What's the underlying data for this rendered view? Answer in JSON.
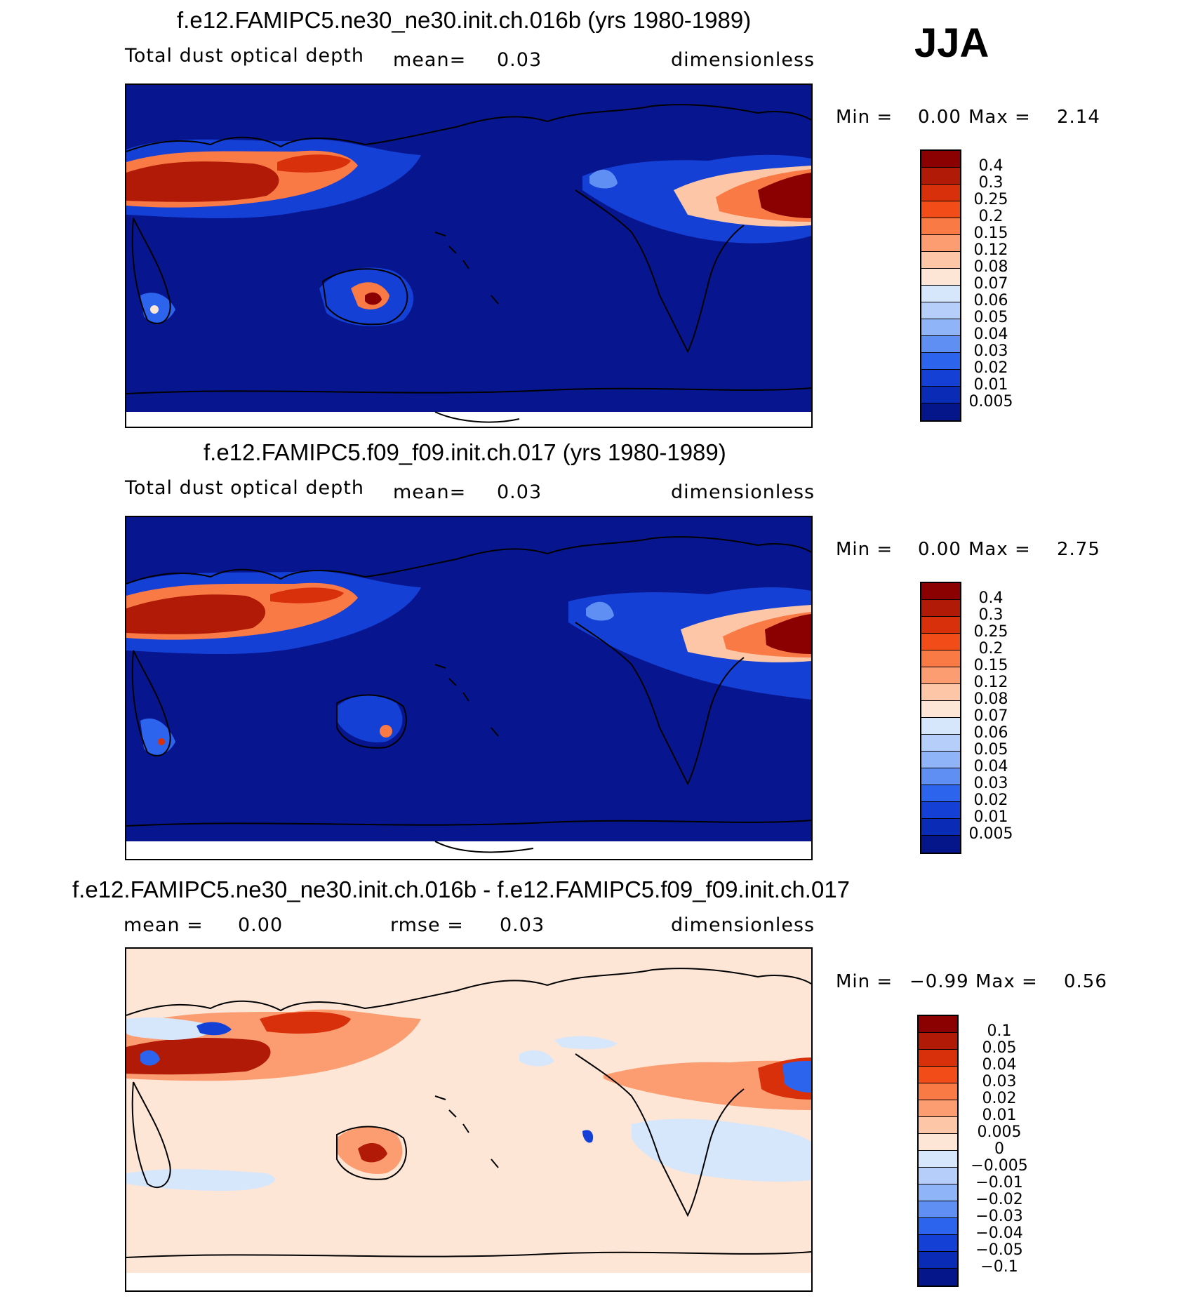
{
  "season": "JJA",
  "panels": [
    {
      "title": "f.e12.FAMIPC5.ne30_ne30.init.ch.016b (yrs 1980-1989)",
      "variable": "Total dust optical depth",
      "stat1_label": "mean=",
      "stat1_value": "0.03",
      "units": "dimensionless",
      "min_label": "Min =",
      "min_value": "0.00",
      "max_label": "Max =",
      "max_value": "2.14"
    },
    {
      "title": "f.e12.FAMIPC5.f09_f09.init.ch.017 (yrs 1980-1989)",
      "variable": "Total dust optical depth",
      "stat1_label": "mean=",
      "stat1_value": "0.03",
      "units": "dimensionless",
      "min_label": "Min =",
      "min_value": "0.00",
      "max_label": "Max =",
      "max_value": "2.75"
    },
    {
      "title": "f.e12.FAMIPC5.ne30_ne30.init.ch.016b - f.e12.FAMIPC5.f09_f09.init.ch.017",
      "stat1_label": "mean =",
      "stat1_value": "0.00",
      "stat2_label": "rmse =",
      "stat2_value": "0.03",
      "units": "dimensionless",
      "min_label": "Min =",
      "min_value": "−0.99",
      "max_label": "Max =",
      "max_value": "0.56"
    }
  ],
  "colorbar_abs": {
    "labels": [
      "0.4",
      "0.3",
      "0.25",
      "0.2",
      "0.15",
      "0.12",
      "0.08",
      "0.07",
      "0.06",
      "0.05",
      "0.04",
      "0.03",
      "0.02",
      "0.01",
      "0.005"
    ],
    "colors": [
      "#8b0000",
      "#b01a07",
      "#d9300c",
      "#f24d18",
      "#f97a45",
      "#fb9d70",
      "#fdc7a7",
      "#fde6d6",
      "#d6e6fb",
      "#b5cffa",
      "#8fb4f7",
      "#5f8ff2",
      "#2d64ee",
      "#1440d6",
      "#0a2bb6",
      "#05168a"
    ]
  },
  "colorbar_diff": {
    "labels": [
      "0.1",
      "0.05",
      "0.04",
      "0.03",
      "0.02",
      "0.01",
      "0.005",
      "0",
      "−0.005",
      "−0.01",
      "−0.02",
      "−0.03",
      "−0.04",
      "−0.05",
      "−0.1"
    ],
    "colors": [
      "#8b0000",
      "#b01a07",
      "#d9300c",
      "#f24d18",
      "#f97a45",
      "#fb9d70",
      "#fdc7a7",
      "#fde6d6",
      "#d6e6fb",
      "#b5cffa",
      "#8fb4f7",
      "#5f8ff2",
      "#2d64ee",
      "#1440d6",
      "#0a2bb6",
      "#05168a"
    ]
  }
}
